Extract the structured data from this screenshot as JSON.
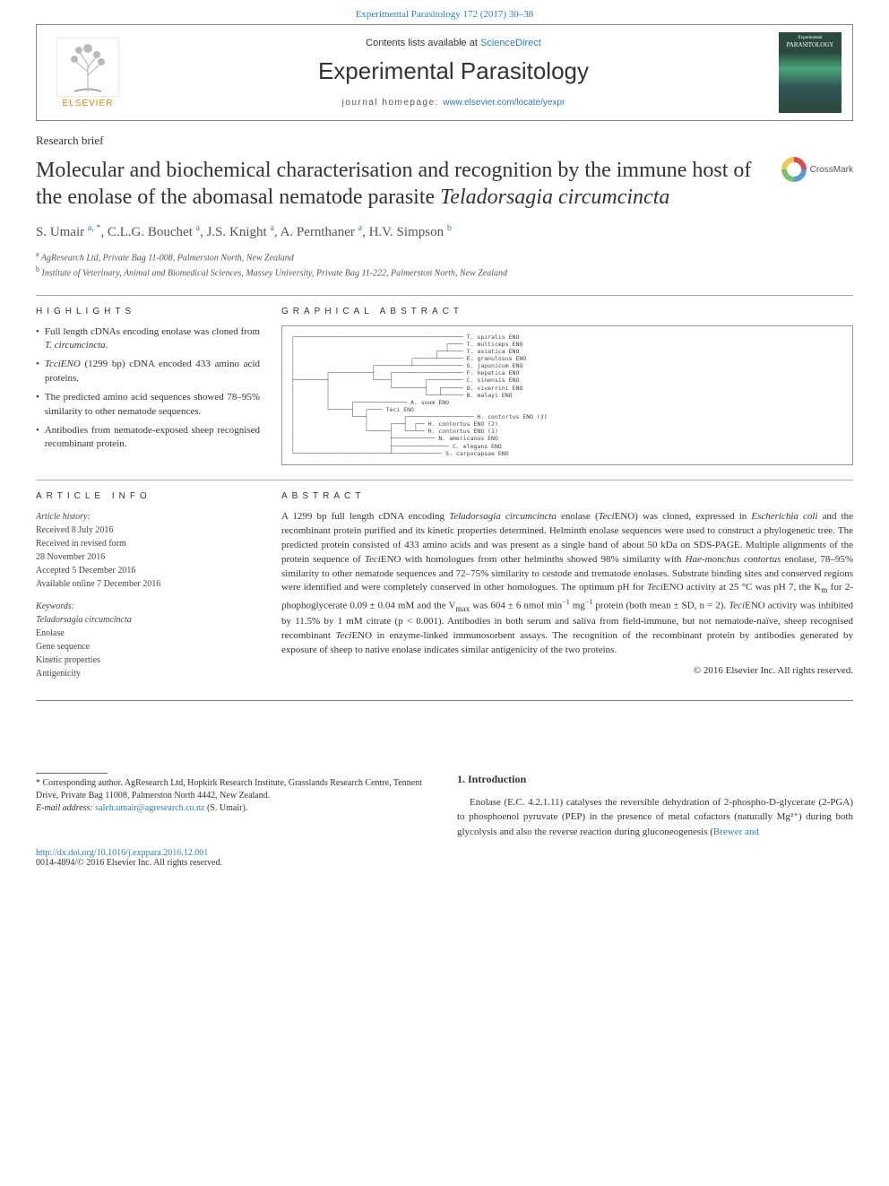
{
  "header": {
    "top_link": "Experimental Parasitology 172 (2017) 30–38",
    "contents_line_pre": "Contents lists available at ",
    "contents_line_link": "ScienceDirect",
    "journal_title": "Experimental Parasitology",
    "homepage_label": "journal homepage: ",
    "homepage_url": "www.elsevier.com/locate/yexpr",
    "publisher": "ELSEVIER",
    "cover_top": "Experimental",
    "cover_title": "PARASITOLOGY"
  },
  "article": {
    "type": "Research brief",
    "title_pre": "Molecular and biochemical characterisation and recognition by the immune host of the enolase of the abomasal nematode parasite ",
    "title_species": "Teladorsagia circumcincta",
    "crossmark": "CrossMark",
    "authors": [
      {
        "name": "S. Umair",
        "aff": "a",
        "corr": true
      },
      {
        "name": "C.L.G. Bouchet",
        "aff": "a"
      },
      {
        "name": "J.S. Knight",
        "aff": "a"
      },
      {
        "name": "A. Pernthaner",
        "aff": "a"
      },
      {
        "name": "H.V. Simpson",
        "aff": "b"
      }
    ],
    "affiliations": [
      {
        "key": "a",
        "text": "AgResearch Ltd, Private Bag 11-008, Palmerston North, New Zealand"
      },
      {
        "key": "b",
        "text": "Institute of Veterinary, Animal and Biomedical Sciences, Massey University, Private Bag 11-222, Palmerston North, New Zealand"
      }
    ]
  },
  "highlights": {
    "label": "HIGHLIGHTS",
    "items": [
      {
        "pre": "Full length cDNAs encoding enolase was cloned from ",
        "ital": "T. circumcincta",
        "post": "."
      },
      {
        "pre": "",
        "ital": "TcciENO",
        "post": " (1299 bp) cDNA encoded 433 amino acid proteins."
      },
      {
        "pre": "The predicted amino acid sequences showed 78–95% similarity to other nematode sequences.",
        "ital": "",
        "post": ""
      },
      {
        "pre": "Antibodies from nematode-exposed sheep recognised recombinant protein.",
        "ital": "",
        "post": ""
      }
    ]
  },
  "graphical_abstract": {
    "label": "GRAPHICAL ABSTRACT",
    "tree_lines": [
      "┌──────────────────────────────────────────────── T. spiralis ENO",
      "│                                           ┌──── T. multiceps ENO",
      "│                                        ┌──┴──── T. asiatica ENO",
      "│                                 ┌──────┴─────── E. granulosus ENO",
      "│                      ┌──────────┴────────────── S. japonicum ENO",
      "│         ┌────────────┤    ┌──────────────────── F. hepatica ENO",
      "├─────────┤            └────┤         ┌────────── C. sinensis ENO",
      "│         │                 └─────────┤   ┌────── O. viverrini ENO",
      "│         │                           └───┴────── B. malayi ENO",
      "│         │      ┌─────────────── A. suum ENO",
      "│         └──────┤   ┌──── Teci ENO",
      "│                └───┤          ┌─────────────────── H. contortus ENO (3)",
      "│                    │      ┌───┤  ┌── H. contortus ENO (2)",
      "│                    └──────┤   └──┴── H. contortus ENO (1)",
      "│                           ├──────────── N. americanus ENO",
      "│                           ├──────────────── C. elegans ENO",
      "└───────────────────────────┴────────────── S. carpocapsae ENO"
    ]
  },
  "article_info": {
    "label": "ARTICLE INFO",
    "history_head": "Article history:",
    "history": [
      "Received 8 July 2016",
      "Received in revised form",
      "28 November 2016",
      "Accepted 5 December 2016",
      "Available online 7 December 2016"
    ],
    "keywords_head": "Keywords:",
    "keywords": [
      "Teladorsagia circumcincta",
      "Enolase",
      "Gene sequence",
      "Kinetic properties",
      "Antigenicity"
    ]
  },
  "abstract": {
    "label": "ABSTRACT",
    "text": "A 1299 bp full length cDNA encoding Teladorsagia circumcincta enolase (TeciENO) was cloned, expressed in Escherichia coli and the recombinant protein purified and its kinetic properties determined. Helminth enolase sequences were used to construct a phylogenetic tree. The predicted protein consisted of 433 amino acids and was present as a single band of about 50 kDa on SDS-PAGE. Multiple alignments of the protein sequence of TeciENO with homologues from other helminths showed 98% similarity with Haemonchus contortus enolase, 78–95% similarity to other nematode sequences and 72–75% similarity to cestode and trematode enolases. Substrate binding sites and conserved regions were identified and were completely conserved in other homologues. The optimum pH for TeciENO activity at 25 °C was pH 7, the Km for 2-phophoglycerate 0.09 ± 0.04 mM and the Vmax was 604 ± 6 nmol min⁻¹ mg⁻¹ protein (both mean ± SD, n = 2). TeciENO activity was inhibited by 11.5% by 1 mM citrate (p < 0.001). Antibodies in both serum and saliva from field-immune, but not nematode-naïve, sheep recognised recombinant TeciENO in enzyme-linked immunosorbent assays. The recognition of the recombinant protein by antibodies generated by exposure of sheep to native enolase indicates similar antigenicity of the two proteins.",
    "copyright": "© 2016 Elsevier Inc. All rights reserved."
  },
  "footnote": {
    "corr": "* Corresponding author. AgResearch Ltd, Hopkirk Research Institute, Grasslands Research Centre, Tennent Drive, Private Bag 11008, Palmerston North 4442, New Zealand.",
    "email_label": "E-mail address: ",
    "email": "saleh.umair@agresearch.co.nz",
    "email_post": " (S. Umair)."
  },
  "introduction": {
    "heading": "1. Introduction",
    "text_pre": "Enolase (E.C. 4.2.1.11) catalyses the reversible dehydration of 2-phospho-D-glycerate (2-PGA) to phosphoenol pyruvate (PEP) in the presence of metal cofactors (naturally Mg²⁺) during both glycolysis and also the reverse reaction during gluconeogenesis (",
    "text_link": "Brewer and"
  },
  "footer": {
    "doi": "http://dx.doi.org/10.1016/j.exppara.2016.12.001",
    "issn": "0014-4894/© 2016 Elsevier Inc. All rights reserved."
  },
  "colors": {
    "link": "#2e7db2",
    "text": "#333333",
    "rule": "#888888",
    "elsevier_orange": "#ee7f00"
  }
}
